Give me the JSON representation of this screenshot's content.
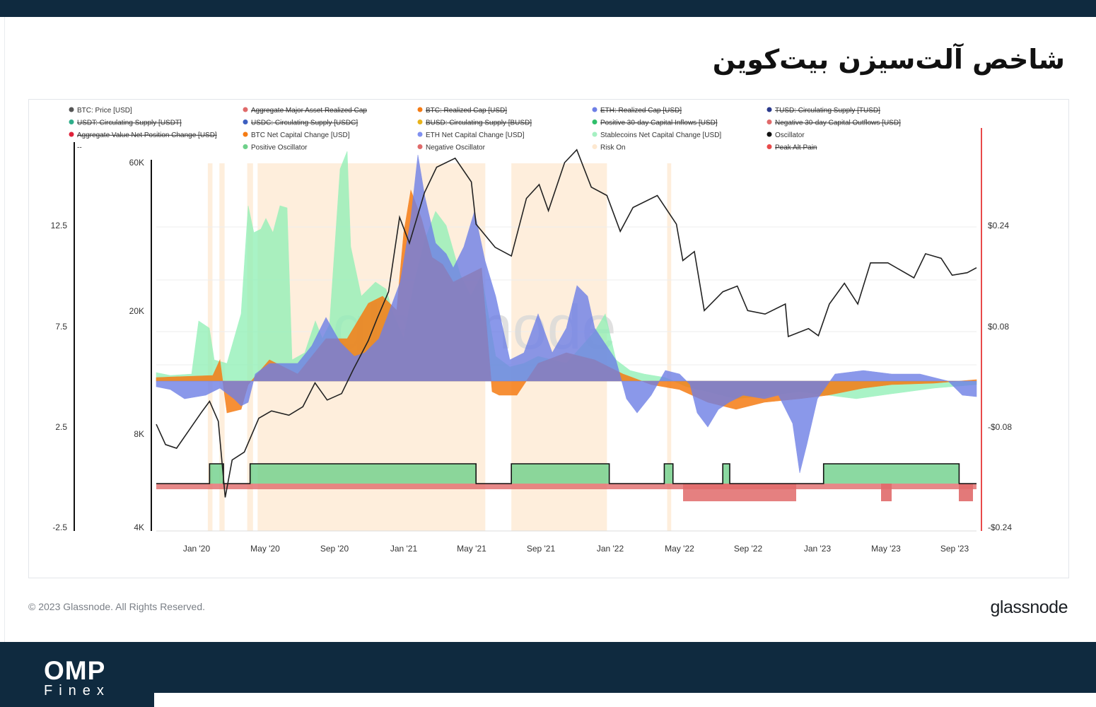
{
  "header": {
    "title": "شاخص آلت‌سیزن بیت‌کوین"
  },
  "footer": {
    "copyright": "© 2023 Glassnode. All Rights Reserved.",
    "brand": "glassnode"
  },
  "branding": {
    "logo_main": "OMP",
    "logo_sub": "Finex",
    "watermark": "glassnode"
  },
  "colors": {
    "navy": "#0f2a3f",
    "price": "#222222",
    "btc": "#f57c14",
    "eth": "#6e7fe6",
    "stable": "#8df0b4",
    "positive": "#6ed08a",
    "negative": "#e06a6a",
    "riskon": "#fde8d0",
    "peak": "#e84a4a"
  },
  "chart_data": {
    "type": "line",
    "x_ticks": [
      "Jan '20",
      "May '20",
      "Sep '20",
      "Jan '21",
      "May '21",
      "Sep '21",
      "Jan '22",
      "May '22",
      "Sep '22",
      "Jan '23",
      "May '23",
      "Sep '23"
    ],
    "y_price_ticks": [
      "60K",
      "20K",
      "8K",
      "4K"
    ],
    "y_osc_ticks": [
      "12.5",
      "7.5",
      "2.5",
      "-2.5"
    ],
    "y_right_ticks": [
      "$0.24",
      "$0.08",
      "-$0.08",
      "-$0.24"
    ],
    "legend": [
      {
        "label": "BTC: Price [USD]",
        "color": "#555555",
        "struck": false
      },
      {
        "label": "Aggregate Major Asset Realized Cap",
        "color": "#e06a6a",
        "struck": true
      },
      {
        "label": "BTC: Realized Cap [USD]",
        "color": "#f57c14",
        "struck": true
      },
      {
        "label": "ETH: Realized Cap [USD]",
        "color": "#6e7fe6",
        "struck": true
      },
      {
        "label": "TUSD: Circulating Supply [TUSD]",
        "color": "#2b3a8c",
        "struck": true
      },
      {
        "label": "USDT: Circulating Supply [USDT]",
        "color": "#2fae8a",
        "struck": true
      },
      {
        "label": "USDC: Circulating Supply [USDC]",
        "color": "#3d5fc0",
        "struck": true
      },
      {
        "label": "BUSD: Circulating Supply [BUSD]",
        "color": "#e8b31a",
        "struck": true
      },
      {
        "label": "Positive 30-day Capital Inflows [USD]",
        "color": "#2fbf6a",
        "struck": true
      },
      {
        "label": "Negative 30-day Capital Outflows [USD]",
        "color": "#e06a6a",
        "struck": true
      },
      {
        "label": "Aggregate Value Net Position Change [USD]",
        "color": "#e0223a",
        "struck": true
      },
      {
        "label": "BTC Net Capital Change [USD]",
        "color": "#f57c14",
        "struck": false
      },
      {
        "label": "ETH Net Capital Change [USD]",
        "color": "#8090f0",
        "struck": false
      },
      {
        "label": "Stablecoins Net Capital Change [USD]",
        "color": "#a6f0c2",
        "struck": false
      },
      {
        "label": "Oscillator",
        "color": "#111111",
        "struck": false
      },
      {
        "label": "--",
        "color": "",
        "struck": false
      },
      {
        "label": "Positive Oscillator",
        "color": "#6ed08a",
        "struck": false
      },
      {
        "label": "Negative Oscillator",
        "color": "#e06a6a",
        "struck": false
      },
      {
        "label": "Risk On",
        "color": "#fde8d0",
        "struck": false
      },
      {
        "label": "Peak Alt Pain",
        "color": "#e84a4a",
        "struck": true
      }
    ],
    "price_series": {
      "name": "BTC: Price [USD]",
      "x": [
        "2019-11-15",
        "2019-12-01",
        "2019-12-20",
        "2020-01-10",
        "2020-02-01",
        "2020-02-15",
        "2020-03-01",
        "2020-03-13",
        "2020-03-25",
        "2020-04-15",
        "2020-05-10",
        "2020-06-01",
        "2020-07-01",
        "2020-07-25",
        "2020-08-15",
        "2020-09-05",
        "2020-09-30",
        "2020-10-20",
        "2020-11-15",
        "2020-12-01",
        "2020-12-20",
        "2021-01-08",
        "2021-01-25",
        "2021-02-20",
        "2021-03-13",
        "2021-04-14",
        "2021-05-12",
        "2021-05-20",
        "2021-06-22",
        "2021-07-20",
        "2021-08-15",
        "2021-09-06",
        "2021-09-22",
        "2021-10-20",
        "2021-11-10",
        "2021-12-05",
        "2022-01-01",
        "2022-01-24",
        "2022-02-15",
        "2022-03-29",
        "2022-05-01",
        "2022-05-12",
        "2022-06-01",
        "2022-06-18",
        "2022-07-20",
        "2022-08-14",
        "2022-09-01",
        "2022-10-01",
        "2022-11-05",
        "2022-11-10",
        "2022-12-15",
        "2023-01-01",
        "2023-01-20",
        "2023-02-15",
        "2023-03-10",
        "2023-04-01",
        "2023-05-01",
        "2023-06-15",
        "2023-07-05",
        "2023-08-01",
        "2023-08-20",
        "2023-09-15",
        "2023-10-01"
      ],
      "y": [
        8600,
        7400,
        7200,
        8200,
        9400,
        10200,
        8800,
        5000,
        6600,
        7000,
        9000,
        9500,
        9200,
        9800,
        11700,
        10300,
        10800,
        12900,
        16000,
        19000,
        23000,
        40000,
        33000,
        48000,
        58000,
        62000,
        52000,
        38000,
        32000,
        30000,
        46000,
        51000,
        42000,
        60000,
        66000,
        50000,
        47000,
        36000,
        43000,
        47000,
        38000,
        29000,
        31000,
        20000,
        23000,
        24000,
        20000,
        19500,
        21000,
        16500,
        17500,
        16600,
        21000,
        24500,
        21000,
        28500,
        28500,
        25500,
        30500,
        29500,
        26000,
        26500,
        27500
      ]
    },
    "oscillator_positive_periods": [
      [
        "2020-02-15",
        "2020-03-10"
      ],
      [
        "2020-04-25",
        "2021-05-20"
      ],
      [
        "2021-07-20",
        "2022-01-05"
      ],
      [
        "2022-04-10",
        "2022-04-25"
      ],
      [
        "2022-07-20",
        "2022-08-01"
      ],
      [
        "2023-01-10",
        "2023-09-01"
      ]
    ],
    "risk_on_periods": [
      [
        "2020-02-12",
        "2020-02-20"
      ],
      [
        "2020-03-03",
        "2020-03-12"
      ],
      [
        "2020-04-20",
        "2020-04-30"
      ],
      [
        "2020-05-08",
        "2021-06-05"
      ],
      [
        "2021-07-20",
        "2022-01-01"
      ],
      [
        "2022-04-15",
        "2022-04-22"
      ]
    ]
  }
}
